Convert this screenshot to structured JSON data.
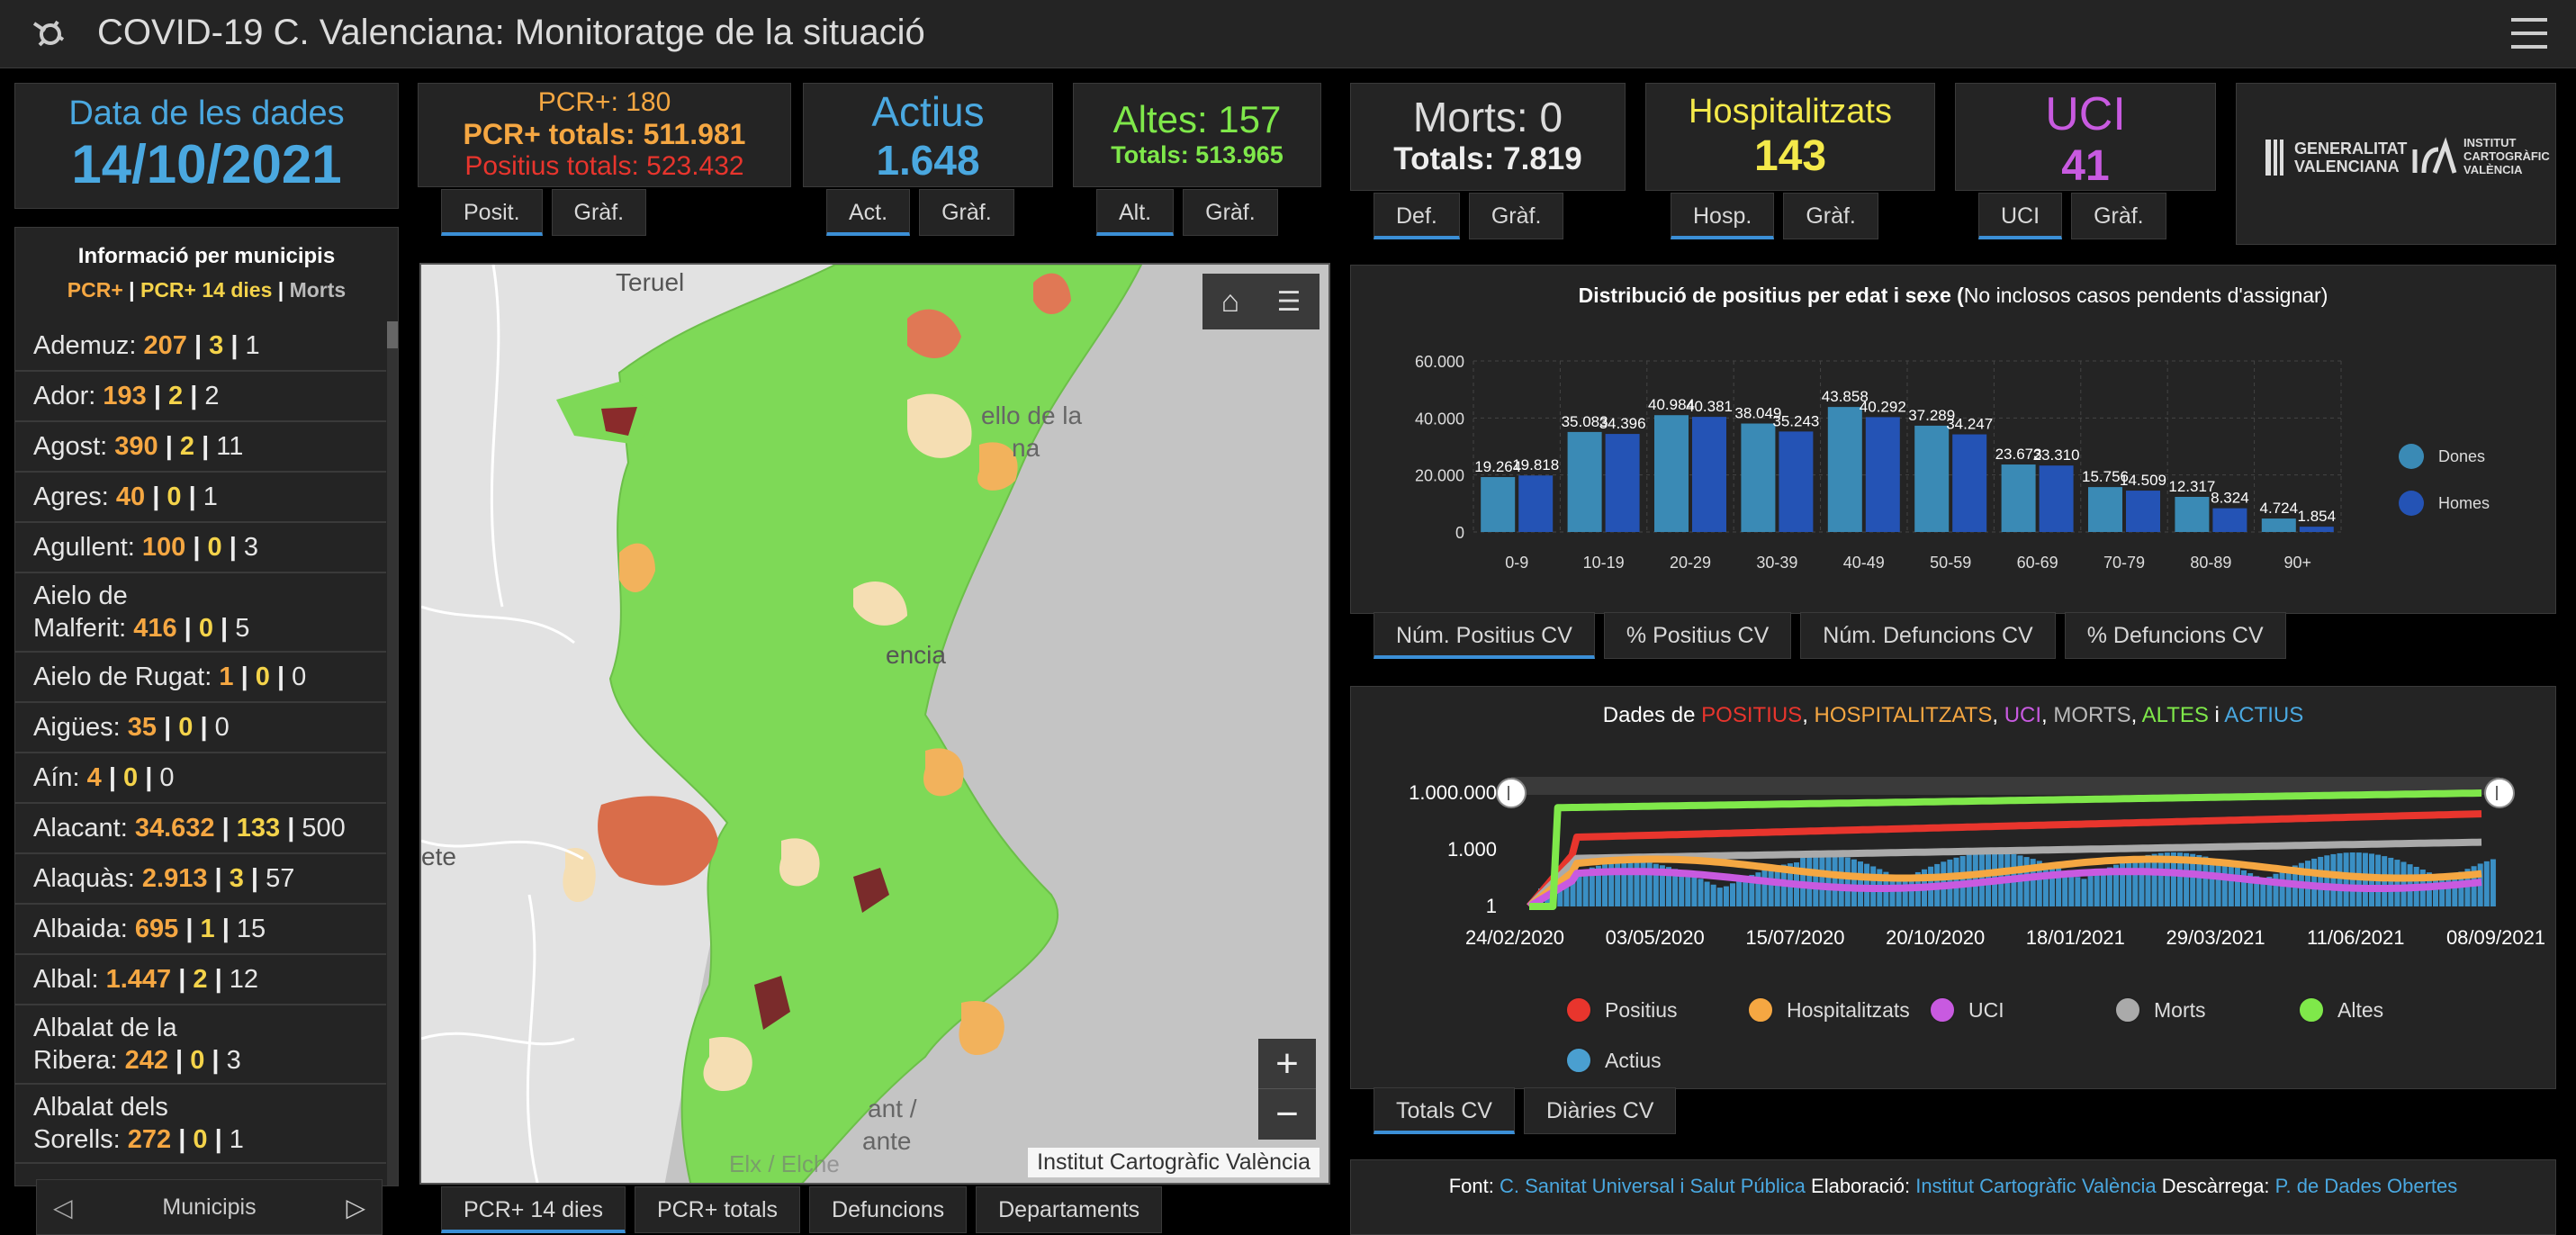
{
  "header": {
    "title": "COVID-19 C. Valenciana: Monitoratge de la situació",
    "logo_icon": "virus-icon",
    "menu_icon": "hamburger-icon"
  },
  "date_box": {
    "label": "Data de les dades",
    "value": "14/10/2021"
  },
  "pcr": {
    "line1": "PCR+: 180",
    "line2": "PCR+ totals: 511.981",
    "line3": "Positius totals: 523.432",
    "tabs": [
      "Posit.",
      "Gràf."
    ]
  },
  "actius": {
    "label": "Actius",
    "value": "1.648",
    "tabs": [
      "Act.",
      "Gràf."
    ]
  },
  "altes": {
    "line1": "Altes: 157",
    "line2": "Totals: 513.965",
    "tabs": [
      "Alt.",
      "Gràf."
    ]
  },
  "morts": {
    "line1": "Morts: 0",
    "line2": "Totals: 7.819",
    "tabs": [
      "Def.",
      "Gràf."
    ]
  },
  "hosp": {
    "label": "Hospitalitzats",
    "value": "143",
    "tabs": [
      "Hosp.",
      "Gràf."
    ]
  },
  "uci": {
    "label": "UCI",
    "value": "41",
    "tabs": [
      "UCI",
      "Gràf."
    ]
  },
  "logos": {
    "gva1": "GENERALITAT",
    "gva2": "VALENCIANA",
    "icv1": "INSTITUT",
    "icv2": "CARTOGRÀFIC",
    "icv3": "VALÈNCIA"
  },
  "municipis": {
    "title": "Informació per municipis",
    "legend_pcr": "PCR+",
    "legend_pcr14": "PCR+ 14 dies",
    "legend_morts": "Morts",
    "footer": "Municipis",
    "rows": [
      {
        "name": "Ademuz:",
        "a": "207",
        "b": "3",
        "c": "1"
      },
      {
        "name": "Ador:",
        "a": "193",
        "b": "2",
        "c": "2"
      },
      {
        "name": "Agost:",
        "a": "390",
        "b": "2",
        "c": "11"
      },
      {
        "name": "Agres:",
        "a": "40",
        "b": "0",
        "c": "1"
      },
      {
        "name": "Agullent:",
        "a": "100",
        "b": "0",
        "c": "3"
      },
      {
        "name1": "Aielo de",
        "name": "Malferit:",
        "a": "416",
        "b": "0",
        "c": "5"
      },
      {
        "name": "Aielo de Rugat:",
        "a": "1",
        "b": "0",
        "c": "0"
      },
      {
        "name": "Aigües:",
        "a": "35",
        "b": "0",
        "c": "0"
      },
      {
        "name": "Aín:",
        "a": "4",
        "b": "0",
        "c": "0"
      },
      {
        "name": "Alacant:",
        "a": "34.632",
        "b": "133",
        "c": "500"
      },
      {
        "name": "Alaquàs:",
        "a": "2.913",
        "b": "3",
        "c": "57"
      },
      {
        "name": "Albaida:",
        "a": "695",
        "b": "1",
        "c": "15"
      },
      {
        "name": "Albal:",
        "a": "1.447",
        "b": "2",
        "c": "12"
      },
      {
        "name1": "Albalat de la",
        "name": "Ribera:",
        "a": "242",
        "b": "0",
        "c": "3"
      },
      {
        "name1": "Albalat dels",
        "name": "Sorells:",
        "a": "272",
        "b": "0",
        "c": "1"
      }
    ]
  },
  "map": {
    "labels": {
      "teruel": "Teruel",
      "castello": "ello de la",
      "castello2": "na",
      "valencia": "encia",
      "albacete": "ete",
      "alacant1": "ant /",
      "alacant2": "ante",
      "elx": "Elx / Elche"
    },
    "attribution": "Institut Cartogràfic València",
    "zoom_in": "+",
    "zoom_out": "−",
    "tabs": [
      "PCR+ 14 dies",
      "PCR+ totals",
      "Defuncions",
      "Departaments"
    ]
  },
  "bar_panel": {
    "title_bold": "Distribució de positius per edat i sexe (",
    "title_rest": "No inclosos casos pendents d'assignar)",
    "tabs": [
      "Núm. Positius CV",
      "% Positius CV",
      "Núm. Defuncions CV",
      "% Defuncions CV"
    ]
  },
  "line_panel": {
    "title_parts": [
      "Dades de ",
      "POSITIUS",
      ", ",
      "HOSPITALITZATS",
      ", ",
      "UCI",
      ", ",
      "MORTS",
      ", ",
      "ALTES",
      " i ",
      "ACTIUS"
    ],
    "tabs": [
      "Totals CV",
      "Diàries CV"
    ]
  },
  "footer": {
    "font_label": "Font: ",
    "font_value": "C. Sanitat Universal i Salut Pública",
    "elab_label": " Elaboració: ",
    "elab_value": "Institut Cartogràfic València",
    "desc_label": " Descàrrega: ",
    "desc_value": "P. de Dades Obertes"
  },
  "colors": {
    "blue": "#4aa8e0",
    "orange": "#f5a742",
    "red": "#e8352d",
    "green": "#7fe84a",
    "yellow": "#f4e94a",
    "purple": "#c85ae0",
    "grey": "#aaaaaa",
    "dones": "#3a8ab5",
    "homes": "#2453b5"
  },
  "chart_data": [
    {
      "type": "bar",
      "title": "Distribució de positius per edat i sexe (No inclosos casos pendents d'assignar)",
      "categories": [
        "0-9",
        "10-19",
        "20-29",
        "30-39",
        "40-49",
        "50-59",
        "60-69",
        "70-79",
        "80-89",
        "90+"
      ],
      "series": [
        {
          "name": "Dones",
          "values": [
            19264,
            35083,
            40984,
            38049,
            43858,
            37289,
            23673,
            15756,
            12317,
            4724
          ],
          "labels": [
            "19.264",
            "35.083",
            "40.984",
            "38.049",
            "43.858",
            "37.289",
            "23.673",
            "15.756",
            "12.317",
            "4.724"
          ]
        },
        {
          "name": "Homes",
          "values": [
            19818,
            34396,
            40381,
            35243,
            40292,
            34247,
            23310,
            14509,
            8324,
            1854
          ],
          "labels": [
            "19.818",
            "34.396",
            "40.381",
            "35.243",
            "40.292",
            "34.247",
            "23.310",
            "14.509",
            "8.324",
            "1.854"
          ]
        }
      ],
      "yticks": [
        "0",
        "20.000",
        "40.000",
        "60.000"
      ],
      "ylim": [
        0,
        60000
      ],
      "grid": true,
      "legend": "right"
    },
    {
      "type": "line",
      "title": "Dades de POSITIUS, HOSPITALITZATS, UCI, MORTS, ALTES i ACTIUS",
      "yscale": "log",
      "yticks": [
        "1",
        "1.000",
        "1.000.000"
      ],
      "xticks": [
        "24/02/2020",
        "03/05/2020",
        "15/07/2020",
        "20/10/2020",
        "18/01/2021",
        "29/03/2021",
        "11/06/2021",
        "08/09/2021"
      ],
      "xlim": [
        "24/02/2020",
        "14/10/2021"
      ],
      "series": [
        {
          "name": "Positius",
          "color": "#e8352d"
        },
        {
          "name": "Hospitalitzats",
          "color": "#f5a742"
        },
        {
          "name": "UCI",
          "color": "#c85ae0"
        },
        {
          "name": "Morts",
          "color": "#aaaaaa"
        },
        {
          "name": "Altes",
          "color": "#7fe84a"
        },
        {
          "name": "Actius",
          "color": "#4a9fd0"
        }
      ],
      "legend": "bottom"
    }
  ]
}
